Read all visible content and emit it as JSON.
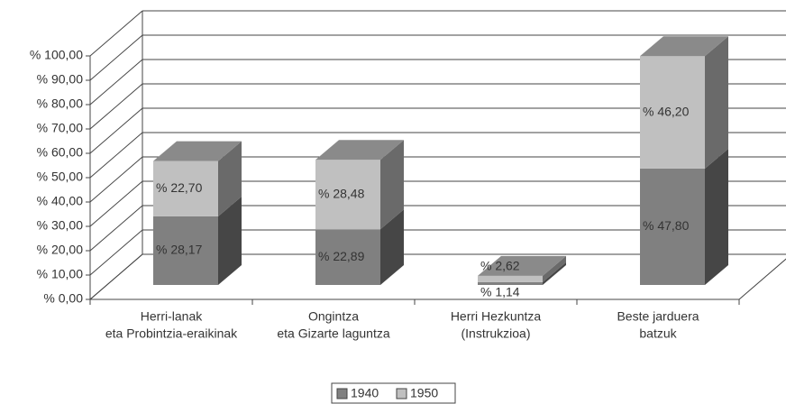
{
  "chart_data": {
    "type": "bar3d_stacked",
    "categories": [
      [
        "Herri-lanak",
        "eta Probintzia-eraikinak"
      ],
      [
        "Ongintza",
        "eta Gizarte laguntza"
      ],
      [
        "Herri Hezkuntza",
        "(Instrukzioa)"
      ],
      [
        "Beste jarduera",
        "batzuk"
      ]
    ],
    "series": [
      {
        "name": "1940",
        "color": "#808080",
        "values": [
          28.17,
          22.89,
          1.14,
          47.8
        ],
        "value_labels": [
          "% 28,17",
          "% 22,89",
          "% 1,14",
          "% 47,80"
        ]
      },
      {
        "name": "1950",
        "color": "#c0c0c0",
        "values": [
          22.7,
          28.48,
          2.62,
          46.2
        ],
        "value_labels": [
          "% 22,70",
          "% 28,48",
          "% 2,62",
          "% 46,20"
        ]
      }
    ],
    "ylim": [
      0,
      100
    ],
    "yticks": [
      {
        "value": 0,
        "label": "% 0,00"
      },
      {
        "value": 10,
        "label": "% 10,00"
      },
      {
        "value": 20,
        "label": "% 20,00"
      },
      {
        "value": 30,
        "label": "% 30,00"
      },
      {
        "value": 40,
        "label": "% 40,00"
      },
      {
        "value": 50,
        "label": "% 50,00"
      },
      {
        "value": 60,
        "label": "% 60,00"
      },
      {
        "value": 70,
        "label": "% 70,00"
      },
      {
        "value": 80,
        "label": "% 80,00"
      },
      {
        "value": 90,
        "label": "% 90,00"
      },
      {
        "value": 100,
        "label": "% 100,00"
      }
    ],
    "grid": true
  }
}
